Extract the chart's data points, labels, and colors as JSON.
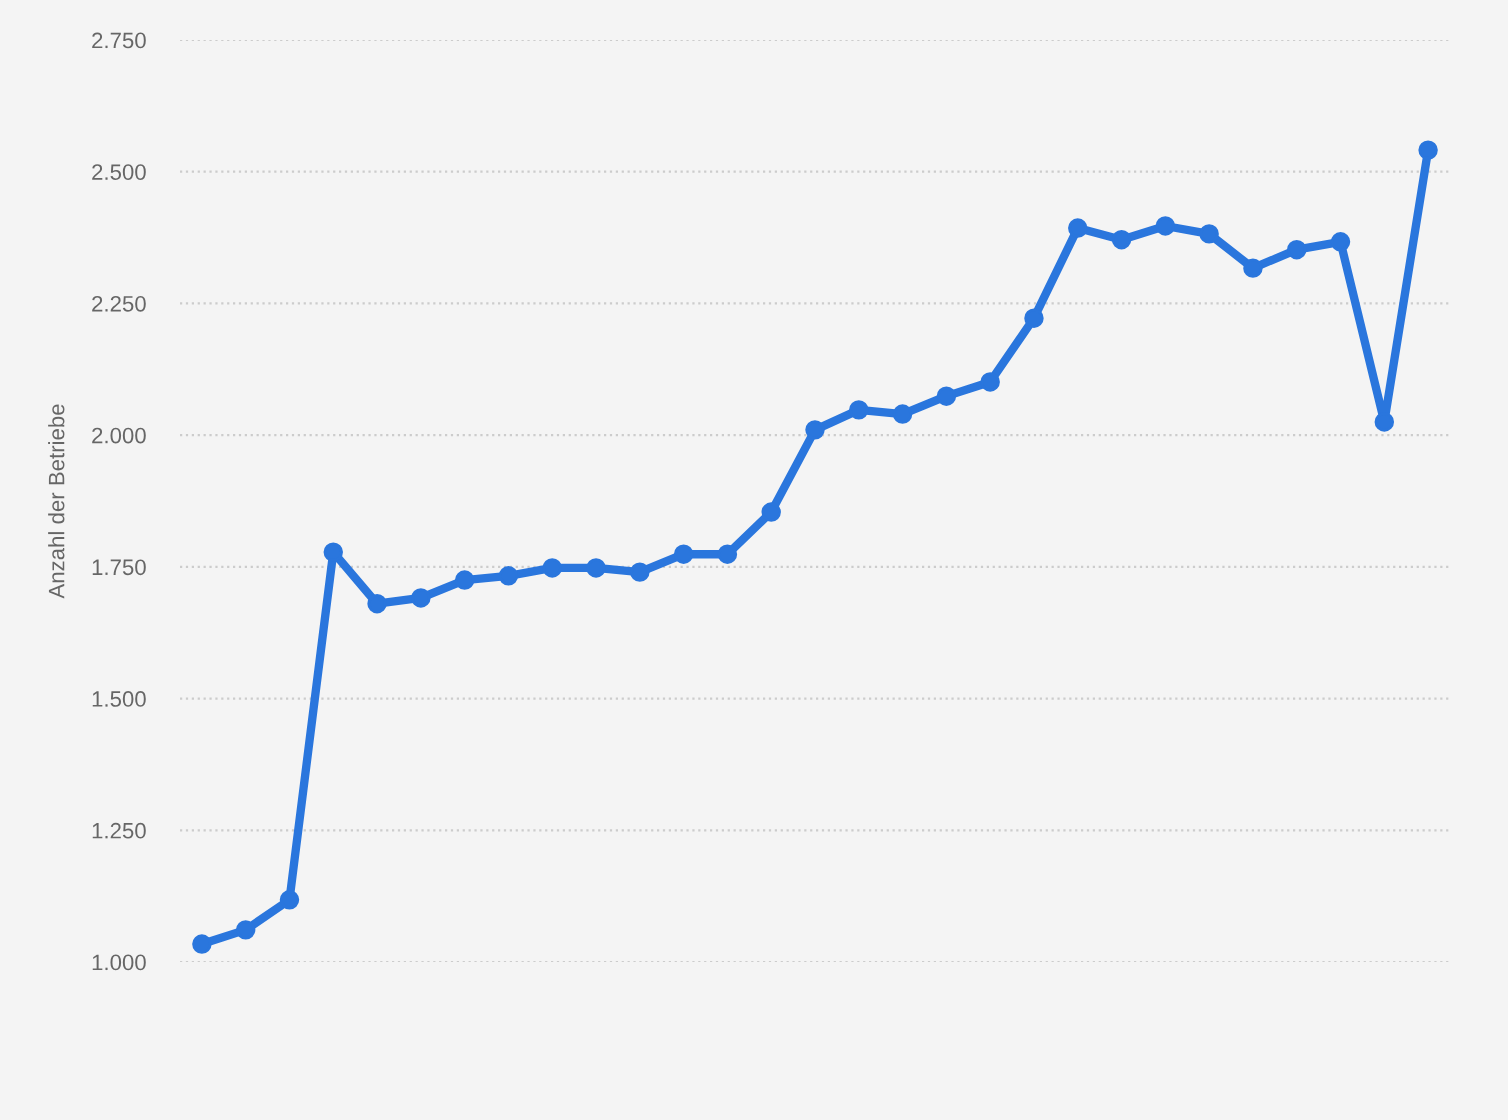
{
  "chart_data": {
    "type": "line",
    "ylabel": "Anzahl der Betriebe",
    "categories": [
      null,
      null,
      null,
      null,
      null,
      null,
      null,
      null,
      null,
      null,
      null,
      null,
      null,
      null,
      null,
      null,
      null,
      null,
      null,
      null,
      null,
      null,
      null,
      null,
      null,
      null,
      null,
      null,
      null
    ],
    "series": [
      {
        "color": "#2a76dd",
        "values": [
          1034,
          1061,
          1118,
          1778,
          1680,
          1691,
          1725,
          1733,
          1748,
          1748,
          1740,
          1774,
          1774,
          1854,
          2010,
          2048,
          2040,
          2074,
          2101,
          2222,
          2393,
          2371,
          2397,
          2382,
          2317,
          2352,
          2367,
          2025,
          2541
        ]
      }
    ],
    "ylim": [
      1000,
      2750
    ],
    "yticks": [
      {
        "value": 1000,
        "label": "1.000"
      },
      {
        "value": 1250,
        "label": "1.250"
      },
      {
        "value": 1500,
        "label": "1.500"
      },
      {
        "value": 1750,
        "label": "1.750"
      },
      {
        "value": 2000,
        "label": "2.000"
      },
      {
        "value": 2250,
        "label": "2.250"
      },
      {
        "value": 2500,
        "label": "2.500"
      },
      {
        "value": 2750,
        "label": "2.750"
      }
    ],
    "grid": "y",
    "marker": "circle",
    "line_style": "solid",
    "tick_labels": "y"
  }
}
